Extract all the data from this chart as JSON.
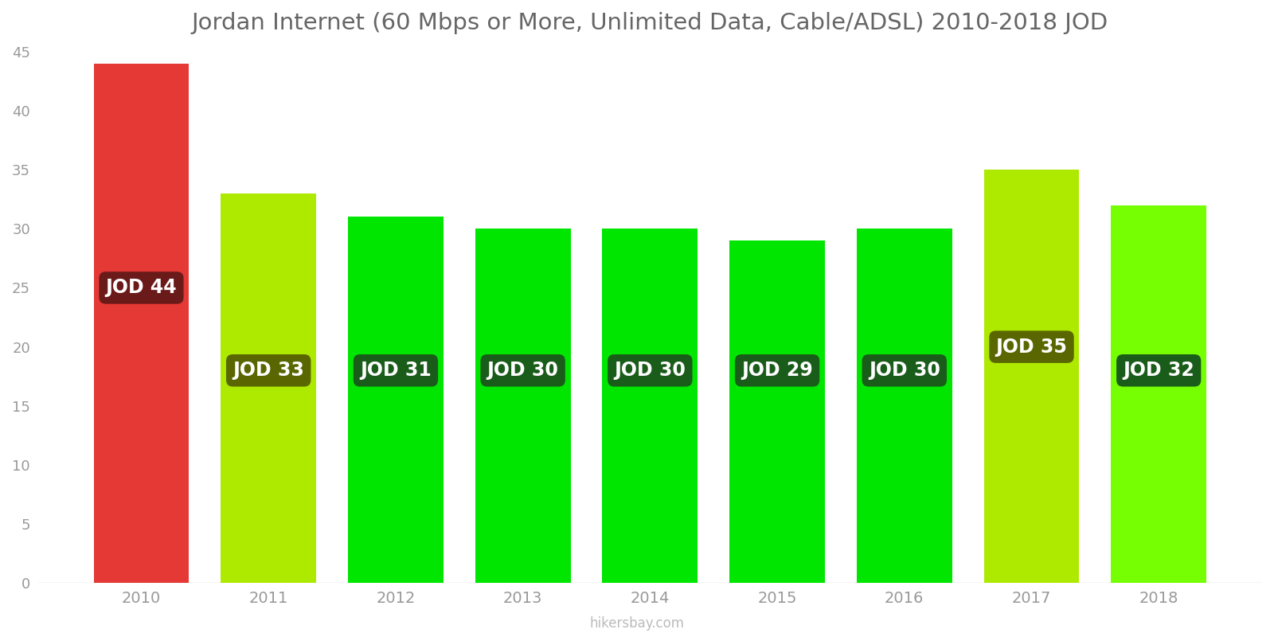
{
  "years": [
    2010,
    2011,
    2012,
    2013,
    2014,
    2015,
    2016,
    2017,
    2018
  ],
  "values": [
    44,
    33,
    31,
    30,
    30,
    29,
    30,
    35,
    32
  ],
  "bar_colors": [
    "#e53935",
    "#aeea00",
    "#00e600",
    "#00e600",
    "#00e600",
    "#00e600",
    "#00e600",
    "#aeea00",
    "#76ff03"
  ],
  "label_bg_colors": [
    "#6b1a1a",
    "#5a6600",
    "#1a5c1a",
    "#1a5c1a",
    "#1a5c1a",
    "#1a5c1a",
    "#1a5c1a",
    "#5a6600",
    "#1a5c1a"
  ],
  "title": "Jordan Internet (60 Mbps or More, Unlimited Data, Cable/ADSL) 2010-2018 JOD",
  "ylim": [
    0,
    45
  ],
  "yticks": [
    0,
    5,
    10,
    15,
    20,
    25,
    30,
    35,
    40,
    45
  ],
  "label_prefix": "JOD ",
  "label_y_positions": [
    25,
    18,
    18,
    18,
    18,
    18,
    18,
    20,
    18
  ],
  "watermark": "hikersbay.com",
  "title_color": "#666666",
  "axis_color": "#999999",
  "bar_width": 0.75,
  "label_fontsize": 17,
  "title_fontsize": 21
}
